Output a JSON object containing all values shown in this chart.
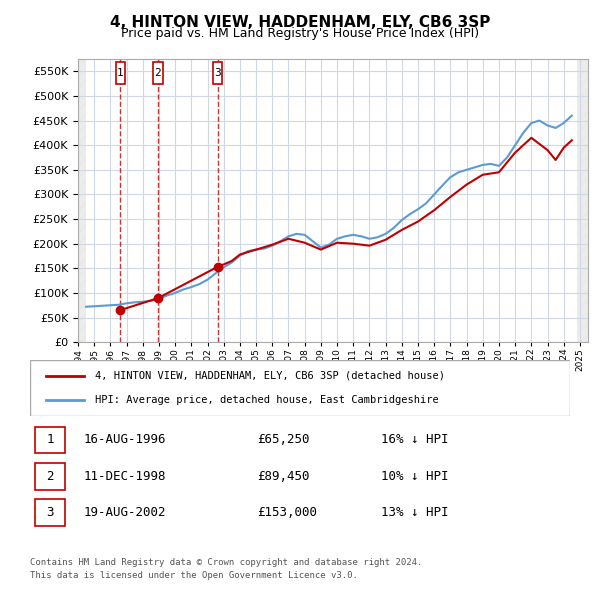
{
  "title": "4, HINTON VIEW, HADDENHAM, ELY, CB6 3SP",
  "subtitle": "Price paid vs. HM Land Registry's House Price Index (HPI)",
  "legend_label_red": "4, HINTON VIEW, HADDENHAM, ELY, CB6 3SP (detached house)",
  "legend_label_blue": "HPI: Average price, detached house, East Cambridgeshire",
  "footer1": "Contains HM Land Registry data © Crown copyright and database right 2024.",
  "footer2": "This data is licensed under the Open Government Licence v3.0.",
  "sales": [
    {
      "num": 1,
      "date": "16-AUG-1996",
      "year": 1996.62,
      "price": 65250,
      "pct": "16%",
      "dir": "↓"
    },
    {
      "num": 2,
      "date": "11-DEC-1998",
      "year": 1998.94,
      "price": 89450,
      "pct": "10%",
      "dir": "↓"
    },
    {
      "num": 3,
      "date": "19-AUG-2002",
      "year": 2002.62,
      "price": 153000,
      "pct": "13%",
      "dir": "↓"
    }
  ],
  "ylim": [
    0,
    575000
  ],
  "xlim_start": 1994.0,
  "xlim_end": 2025.5,
  "hpi_color": "#5b9bd5",
  "price_color": "#c00000",
  "marker_color": "#c00000",
  "hatch_color": "#cccccc",
  "grid_color": "#d0d8e8",
  "bg_color": "#dce6f1",
  "plot_bg": "#ffffff",
  "hpi_data": {
    "years": [
      1994.5,
      1995.0,
      1995.5,
      1996.0,
      1996.5,
      1997.0,
      1997.5,
      1998.0,
      1998.5,
      1999.0,
      1999.5,
      2000.0,
      2000.5,
      2001.0,
      2001.5,
      2002.0,
      2002.5,
      2003.0,
      2003.5,
      2004.0,
      2004.5,
      2005.0,
      2005.5,
      2006.0,
      2006.5,
      2007.0,
      2007.5,
      2008.0,
      2008.5,
      2009.0,
      2009.5,
      2010.0,
      2010.5,
      2011.0,
      2011.5,
      2012.0,
      2012.5,
      2013.0,
      2013.5,
      2014.0,
      2014.5,
      2015.0,
      2015.5,
      2016.0,
      2016.5,
      2017.0,
      2017.5,
      2018.0,
      2018.5,
      2019.0,
      2019.5,
      2020.0,
      2020.5,
      2021.0,
      2021.5,
      2022.0,
      2022.5,
      2023.0,
      2023.5,
      2024.0,
      2024.5
    ],
    "values": [
      72000,
      73000,
      74000,
      75000,
      76000,
      79000,
      81000,
      82000,
      84000,
      88000,
      95000,
      100000,
      107000,
      112000,
      118000,
      127000,
      140000,
      152000,
      162000,
      176000,
      185000,
      188000,
      190000,
      196000,
      205000,
      215000,
      220000,
      218000,
      205000,
      192000,
      198000,
      210000,
      215000,
      218000,
      215000,
      210000,
      213000,
      220000,
      232000,
      248000,
      260000,
      270000,
      282000,
      300000,
      318000,
      335000,
      345000,
      350000,
      355000,
      360000,
      362000,
      358000,
      375000,
      400000,
      425000,
      445000,
      450000,
      440000,
      435000,
      445000,
      460000
    ]
  },
  "price_data": {
    "years": [
      1996.62,
      1998.94,
      2002.62,
      2003.0,
      2003.5,
      2004.0,
      2005.0,
      2006.0,
      2007.0,
      2008.0,
      2009.0,
      2010.0,
      2011.0,
      2012.0,
      2013.0,
      2014.0,
      2015.0,
      2016.0,
      2017.0,
      2018.0,
      2019.0,
      2020.0,
      2021.0,
      2022.0,
      2023.0,
      2023.5,
      2024.0,
      2024.5
    ],
    "values": [
      65250,
      89450,
      153000,
      158000,
      165000,
      178000,
      188000,
      198000,
      210000,
      202000,
      188000,
      202000,
      200000,
      196000,
      208000,
      228000,
      245000,
      268000,
      295000,
      320000,
      340000,
      345000,
      385000,
      415000,
      390000,
      370000,
      395000,
      410000
    ]
  }
}
